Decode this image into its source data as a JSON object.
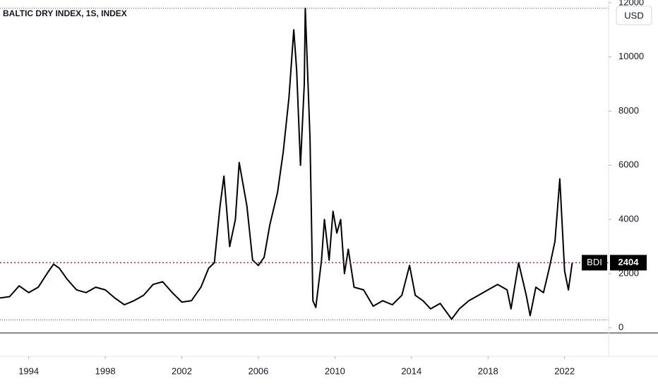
{
  "chart_data": {
    "type": "line",
    "title": "BALTIC DRY INDEX, 1S, INDEX",
    "currency": "USD",
    "x": [
      1992.5,
      1993,
      1993.5,
      1994,
      1994.5,
      1995,
      1995.3,
      1995.6,
      1996,
      1996.5,
      1997,
      1997.5,
      1998,
      1998.5,
      1999,
      1999.5,
      2000,
      2000.5,
      2001,
      2001.5,
      2002,
      2002.5,
      2003,
      2003.4,
      2003.7,
      2004,
      2004.2,
      2004.5,
      2004.8,
      2005,
      2005.4,
      2005.7,
      2006,
      2006.3,
      2006.6,
      2007,
      2007.3,
      2007.6,
      2007.85,
      2008,
      2008.2,
      2008.4,
      2008.45,
      2008.7,
      2008.85,
      2009,
      2009.3,
      2009.45,
      2009.7,
      2009.9,
      2010.1,
      2010.3,
      2010.5,
      2010.7,
      2011,
      2011.5,
      2012,
      2012.5,
      2013,
      2013.5,
      2013.9,
      2014.2,
      2014.6,
      2015,
      2015.5,
      2016.1,
      2016.5,
      2017,
      2017.5,
      2018,
      2018.5,
      2019,
      2019.2,
      2019.6,
      2020,
      2020.2,
      2020.5,
      2020.9,
      2021.2,
      2021.5,
      2021.75,
      2022,
      2022.2,
      2022.4
    ],
    "series": [
      {
        "name": "BDI",
        "color": "#000000",
        "values": [
          1100,
          1150,
          1550,
          1300,
          1500,
          2050,
          2350,
          2200,
          1800,
          1400,
          1300,
          1500,
          1400,
          1100,
          850,
          1000,
          1200,
          1600,
          1700,
          1300,
          950,
          1000,
          1500,
          2200,
          2400,
          4500,
          5600,
          3000,
          4000,
          6100,
          4500,
          2500,
          2300,
          2600,
          3800,
          5000,
          6500,
          8500,
          11000,
          9500,
          6000,
          9000,
          11793,
          7000,
          1000,
          750,
          2500,
          4000,
          2500,
          4300,
          3500,
          4000,
          2000,
          2900,
          1500,
          1400,
          800,
          1000,
          850,
          1200,
          2300,
          1200,
          1000,
          700,
          900,
          320,
          700,
          1000,
          1200,
          1400,
          1600,
          1400,
          700,
          2400,
          1200,
          450,
          1500,
          1300,
          2200,
          3200,
          5500,
          2100,
          1400,
          2404
        ]
      }
    ],
    "xlim": [
      1992.5,
      2024.3
    ],
    "xticks": [
      1994,
      1998,
      2002,
      2006,
      2010,
      2014,
      2018,
      2022
    ],
    "ylim": [
      -1050,
      12100
    ],
    "yticks": [
      0,
      2000,
      4000,
      6000,
      8000,
      10000,
      12000
    ],
    "price_line": {
      "value": 2404,
      "color": "#c2185b"
    },
    "high_line": 11793,
    "low_line": 290
  }
}
